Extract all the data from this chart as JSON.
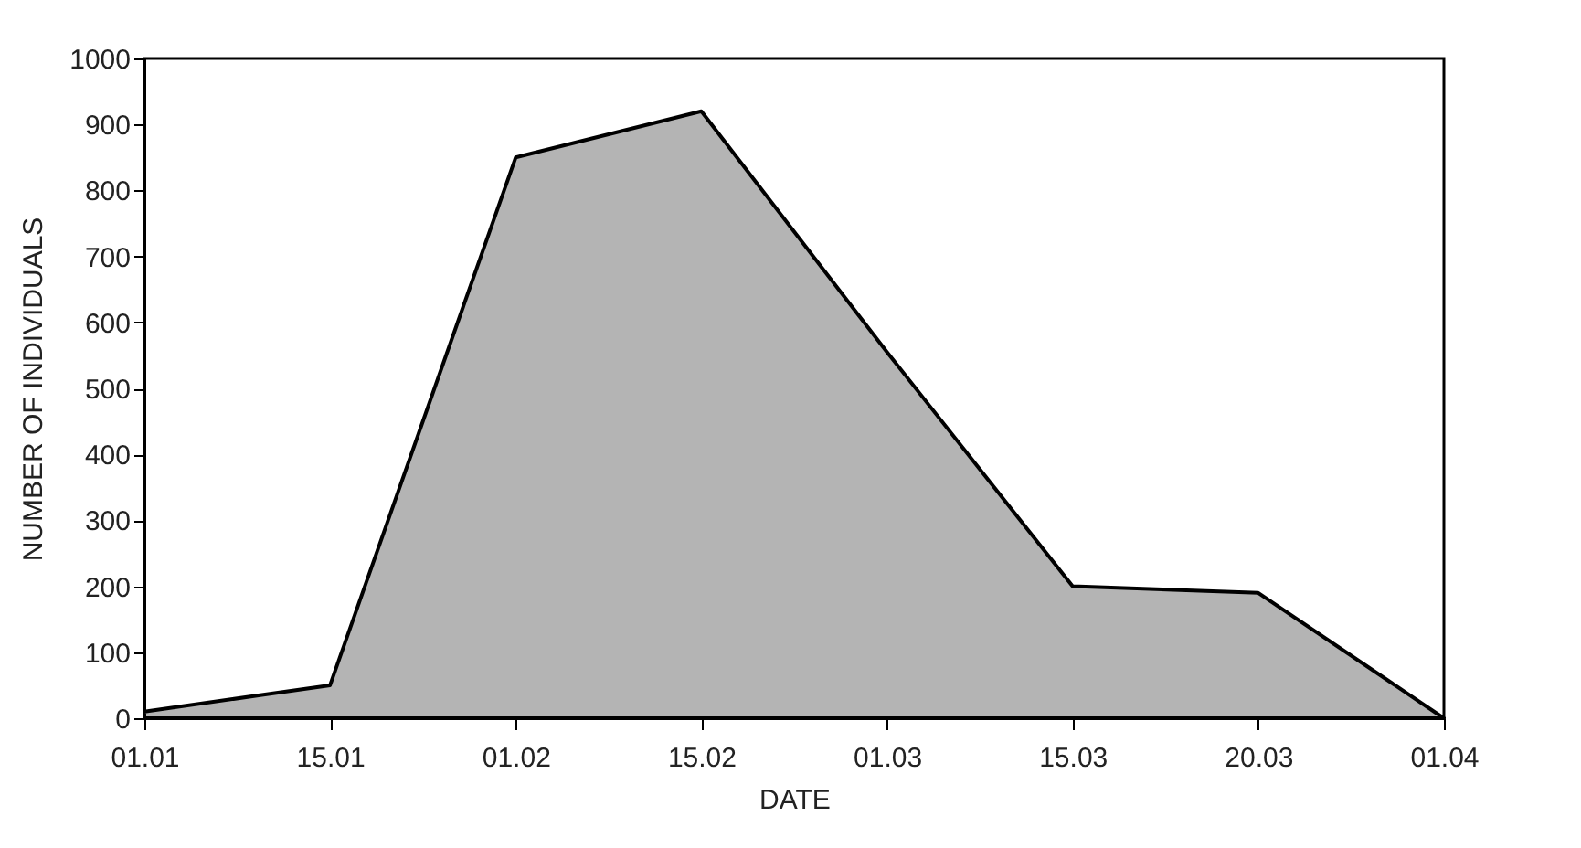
{
  "chart_data": {
    "type": "area",
    "xlabel": "DATE",
    "ylabel": "NUMBER OF INDIVIDUALS",
    "categories": [
      "01.01",
      "15.01",
      "01.02",
      "15.02",
      "01.03",
      "15.03",
      "20.03",
      "01.04"
    ],
    "series": [
      {
        "color": "#b4b4b4",
        "values": [
          10,
          50,
          850,
          920,
          555,
          200,
          190,
          0
        ]
      }
    ],
    "ylim": [
      0,
      1000
    ],
    "yticks": [
      0,
      100,
      200,
      300,
      400,
      500,
      600,
      700,
      800,
      900,
      1000
    ],
    "grid": false,
    "legend": false
  }
}
